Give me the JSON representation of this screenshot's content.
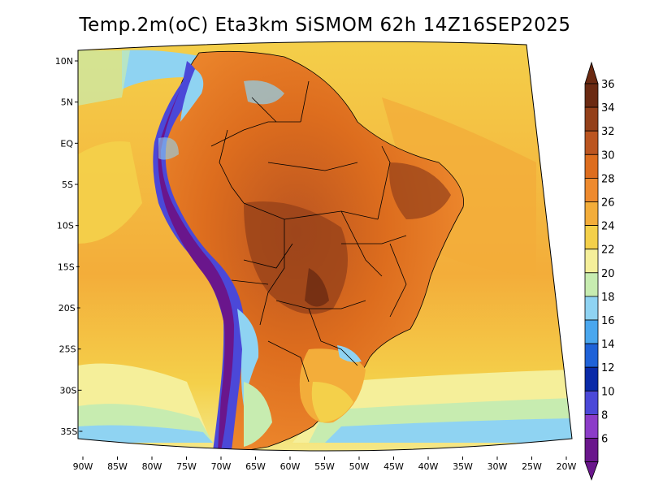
{
  "title": "Temp.2m(oC) Eta3km SiSMOM 62h 14Z16SEP2025",
  "map": {
    "lon_ticks": [
      "90W",
      "85W",
      "80W",
      "75W",
      "70W",
      "65W",
      "60W",
      "55W",
      "50W",
      "45W",
      "40W",
      "35W",
      "30W",
      "25W",
      "20W"
    ],
    "lat_ticks": [
      "10N",
      "5N",
      "EQ",
      "5S",
      "10S",
      "15S",
      "20S",
      "25S",
      "30S",
      "35S"
    ]
  },
  "colorbar": {
    "labels": [
      "36",
      "34",
      "32",
      "30",
      "28",
      "26",
      "24",
      "22",
      "20",
      "18",
      "16",
      "14",
      "12",
      "10",
      "8",
      "6"
    ],
    "colors": [
      "#6b2a12",
      "#94401a",
      "#bb5520",
      "#dd6d1e",
      "#ee8a2e",
      "#f3ad3a",
      "#f4d04a",
      "#f5ef9a",
      "#c7ecb0",
      "#8fd3f2",
      "#4aa7ee",
      "#1f62d8",
      "#0a2aa8",
      "#4b48d8",
      "#8c3cc8",
      "#6a168c"
    ]
  }
}
